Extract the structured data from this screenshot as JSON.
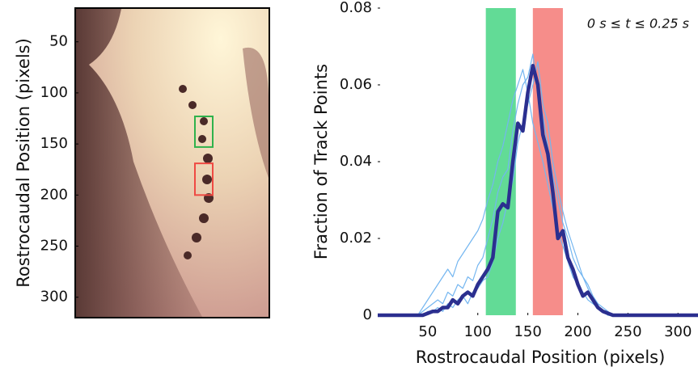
{
  "chart_data": [
    {
      "type": "image",
      "ylabel": "Rostrocaudal Position (pixels)",
      "ylim": [
        17,
        320
      ],
      "yticks": [
        50,
        100,
        150,
        200,
        250,
        300
      ],
      "boxes": [
        {
          "y": [
            123,
            153
          ],
          "color": "#2fb24c"
        },
        {
          "y": [
            169,
            200
          ],
          "color": "#ef4a43"
        }
      ]
    },
    {
      "type": "line",
      "annotation": "0 s ≤ t ≤ 0.25 s",
      "xlabel": "Rostrocaudal Position (pixels)",
      "ylabel": "Fraction of Track Points",
      "xlim": [
        0,
        320
      ],
      "ylim": [
        0,
        0.08
      ],
      "xticks": [
        50,
        100,
        150,
        200,
        250,
        300
      ],
      "yticks": [
        0,
        0.02,
        0.04,
        0.06,
        0.08
      ],
      "bands": [
        {
          "from": 108,
          "to": 138,
          "color": "#62db96"
        },
        {
          "from": 155,
          "to": 185,
          "color": "#f68d8a"
        }
      ],
      "x": [
        0,
        40,
        45,
        50,
        55,
        60,
        65,
        70,
        75,
        80,
        85,
        90,
        95,
        100,
        105,
        110,
        115,
        120,
        125,
        130,
        135,
        140,
        145,
        150,
        155,
        160,
        165,
        170,
        175,
        180,
        185,
        190,
        195,
        200,
        205,
        210,
        215,
        220,
        225,
        230,
        235,
        240,
        320
      ],
      "series": [
        {
          "color": "#74b6f0",
          "width": 1.2,
          "values": [
            0,
            0,
            0.001,
            0.002,
            0.003,
            0.004,
            0.003,
            0.006,
            0.005,
            0.008,
            0.007,
            0.01,
            0.009,
            0.013,
            0.015,
            0.02,
            0.025,
            0.032,
            0.036,
            0.038,
            0.048,
            0.055,
            0.06,
            0.062,
            0.068,
            0.058,
            0.052,
            0.044,
            0.036,
            0.03,
            0.024,
            0.02,
            0.015,
            0.012,
            0.01,
            0.008,
            0.005,
            0.003,
            0.002,
            0.001,
            0,
            0,
            0
          ]
        },
        {
          "color": "#74b6f0",
          "width": 1.2,
          "values": [
            0,
            0,
            0,
            0.001,
            0.001,
            0.002,
            0.001,
            0.003,
            0.002,
            0.004,
            0.005,
            0.003,
            0.006,
            0.007,
            0.009,
            0.01,
            0.014,
            0.02,
            0.024,
            0.03,
            0.035,
            0.045,
            0.05,
            0.055,
            0.06,
            0.066,
            0.055,
            0.05,
            0.04,
            0.033,
            0.027,
            0.022,
            0.018,
            0.014,
            0.01,
            0.007,
            0.004,
            0.002,
            0.001,
            0,
            0,
            0,
            0
          ]
        },
        {
          "color": "#74b6f0",
          "width": 1.2,
          "values": [
            0,
            0,
            0.002,
            0.004,
            0.006,
            0.008,
            0.01,
            0.012,
            0.01,
            0.014,
            0.016,
            0.018,
            0.02,
            0.022,
            0.025,
            0.03,
            0.034,
            0.04,
            0.044,
            0.05,
            0.056,
            0.06,
            0.064,
            0.058,
            0.05,
            0.045,
            0.04,
            0.034,
            0.028,
            0.022,
            0.018,
            0.014,
            0.01,
            0.008,
            0.006,
            0.004,
            0.003,
            0.002,
            0.001,
            0,
            0,
            0,
            0
          ]
        },
        {
          "color": "#2b2f8f",
          "width": 4.5,
          "values": [
            0,
            0,
            0,
            0.0005,
            0.001,
            0.001,
            0.002,
            0.002,
            0.004,
            0.003,
            0.005,
            0.006,
            0.005,
            0.008,
            0.01,
            0.012,
            0.015,
            0.027,
            0.029,
            0.028,
            0.04,
            0.05,
            0.048,
            0.058,
            0.065,
            0.06,
            0.047,
            0.042,
            0.032,
            0.02,
            0.022,
            0.015,
            0.012,
            0.008,
            0.005,
            0.006,
            0.004,
            0.002,
            0.001,
            0.0005,
            0,
            0,
            0
          ]
        }
      ]
    }
  ]
}
